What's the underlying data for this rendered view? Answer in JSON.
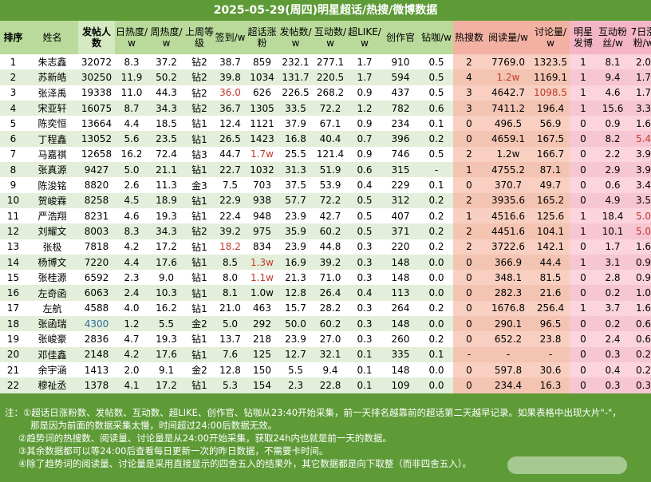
{
  "title": "2025-05-29(周四)明星超话/热搜/微博数据",
  "headers": [
    "排序",
    "姓名",
    "发帖人数",
    "日热度/w",
    "周热度/w",
    "上周等级",
    "签到/w",
    "超话涨粉",
    "发帖数/w",
    "互动数/w",
    "超LIKE/w",
    "创作官",
    "钻咖/w",
    "热搜数",
    "阅读量/w",
    "讨论量/w",
    "明星发博",
    "互动粉丝/w",
    "7日涨粉/w"
  ],
  "rows": [
    [
      "1",
      "朱志鑫",
      "32072",
      "8.3",
      "37.2",
      "钻2",
      "38.7",
      "859",
      "232.1",
      "277.1",
      "1.7",
      "910",
      "0.5",
      "2",
      "7769.0",
      "1323.5",
      "1",
      "8.1",
      "2.0"
    ],
    [
      "2",
      "苏新皓",
      "30250",
      "11.9",
      "50.2",
      "钻2",
      "39.8",
      "1034",
      "131.7",
      "220.5",
      "1.7",
      "594",
      "0.5",
      "4",
      "1.2w",
      "1169.1",
      "1",
      "9.4",
      "1.7"
    ],
    [
      "3",
      "张泽禹",
      "19338",
      "11.0",
      "44.3",
      "钻2",
      "36.0",
      "626",
      "226.5",
      "268.2",
      "0.9",
      "437",
      "0.5",
      "3",
      "4642.7",
      "1098.5",
      "1",
      "4.6",
      "1.7"
    ],
    [
      "4",
      "宋亚轩",
      "16075",
      "8.7",
      "34.3",
      "钻2",
      "36.7",
      "1305",
      "33.5",
      "72.2",
      "1.2",
      "782",
      "0.6",
      "3",
      "7411.2",
      "196.4",
      "1",
      "15.6",
      "3.3"
    ],
    [
      "5",
      "陈奕恒",
      "13664",
      "4.4",
      "18.5",
      "钻1",
      "12.4",
      "1121",
      "37.9",
      "67.1",
      "0.9",
      "234",
      "0.1",
      "0",
      "496.5",
      "56.9",
      "0",
      "0.9",
      "1.6"
    ],
    [
      "6",
      "丁程鑫",
      "13052",
      "5.6",
      "23.5",
      "钻1",
      "26.5",
      "1423",
      "16.8",
      "40.4",
      "0.7",
      "396",
      "0.2",
      "0",
      "4659.1",
      "167.5",
      "0",
      "8.2",
      "5.4"
    ],
    [
      "7",
      "马嘉祺",
      "12658",
      "16.2",
      "72.4",
      "钻3",
      "44.7",
      "1.7w",
      "25.5",
      "121.4",
      "0.9",
      "746",
      "0.5",
      "2",
      "1.2w",
      "166.7",
      "0",
      "2.2",
      "3.9"
    ],
    [
      "8",
      "张真源",
      "9427",
      "5.0",
      "21.1",
      "钻1",
      "22.7",
      "1032",
      "31.3",
      "51.9",
      "0.6",
      "315",
      "-",
      "1",
      "4755.2",
      "87.1",
      "0",
      "2.9",
      "3.9"
    ],
    [
      "9",
      "陈浚铭",
      "8820",
      "2.6",
      "11.3",
      "金3",
      "7.5",
      "703",
      "37.5",
      "53.9",
      "0.4",
      "229",
      "0.1",
      "0",
      "370.7",
      "49.7",
      "0",
      "0.6",
      "3.4"
    ],
    [
      "10",
      "贺峻霖",
      "8258",
      "4.5",
      "18.9",
      "钻1",
      "22.9",
      "938",
      "57.7",
      "72.2",
      "0.5",
      "312",
      "0.2",
      "2",
      "3935.6",
      "165.2",
      "0",
      "4.9",
      "3.5"
    ],
    [
      "11",
      "严浩翔",
      "8231",
      "4.6",
      "19.3",
      "钻1",
      "22.4",
      "948",
      "23.9",
      "42.7",
      "0.5",
      "407",
      "0.2",
      "1",
      "4516.6",
      "125.6",
      "1",
      "18.4",
      "5.0"
    ],
    [
      "12",
      "刘耀文",
      "8003",
      "8.3",
      "34.3",
      "钻2",
      "39.2",
      "975",
      "35.9",
      "60.2",
      "0.5",
      "371",
      "0.2",
      "2",
      "4451.6",
      "104.1",
      "1",
      "10.1",
      "5.0"
    ],
    [
      "13",
      "张极",
      "7818",
      "4.2",
      "17.2",
      "钻1",
      "18.2",
      "834",
      "23.9",
      "44.8",
      "0.3",
      "220",
      "0.2",
      "2",
      "3722.6",
      "142.1",
      "0",
      "1.7",
      "1.6"
    ],
    [
      "14",
      "杨博文",
      "7220",
      "4.4",
      "17.6",
      "钻1",
      "8.5",
      "1.3w",
      "16.9",
      "39.2",
      "0.3",
      "148",
      "0.0",
      "0",
      "366.9",
      "44.4",
      "1",
      "3.1",
      "0.9"
    ],
    [
      "15",
      "张桂源",
      "6592",
      "2.3",
      "9.0",
      "钻1",
      "8.0",
      "1.1w",
      "21.3",
      "71.0",
      "0.3",
      "148",
      "0.0",
      "0",
      "348.1",
      "81.5",
      "0",
      "2.8",
      "0.9"
    ],
    [
      "16",
      "左奇函",
      "6063",
      "2.4",
      "10.3",
      "钻1",
      "8.1",
      "1.0w",
      "12.8",
      "26.4",
      "0.4",
      "113",
      "0.0",
      "0",
      "282.3",
      "21.6",
      "0",
      "0.2",
      "1.0"
    ],
    [
      "17",
      "左航",
      "4588",
      "4.0",
      "16.2",
      "钻1",
      "21.0",
      "463",
      "15.7",
      "28.2",
      "0.3",
      "264",
      "0.2",
      "0",
      "1676.8",
      "256.4",
      "1",
      "3.7",
      "1.6"
    ],
    [
      "18",
      "张函瑞",
      "4300",
      "1.2",
      "5.5",
      "金2",
      "5.0",
      "292",
      "50.0",
      "60.2",
      "0.3",
      "148",
      "0.0",
      "0",
      "290.1",
      "96.5",
      "0",
      "0.2",
      "0.6"
    ],
    [
      "19",
      "张峻豪",
      "2836",
      "4.7",
      "19.3",
      "钻1",
      "13.7",
      "218",
      "23.9",
      "27.0",
      "0.3",
      "260",
      "0.2",
      "0",
      "652.2",
      "23.8",
      "0",
      "2.4",
      "0.6"
    ],
    [
      "20",
      "邓佳鑫",
      "2148",
      "4.2",
      "17.6",
      "钻1",
      "7.6",
      "125",
      "12.7",
      "32.1",
      "0.1",
      "335",
      "0.1",
      "-",
      "-",
      "-",
      "0",
      "0.3",
      "0.2"
    ],
    [
      "21",
      "余宇涵",
      "1413",
      "2.0",
      "9.1",
      "金2",
      "12.8",
      "150",
      "5.5",
      "9.4",
      "0.1",
      "148",
      "0.0",
      "0",
      "597.8",
      "30.6",
      "0",
      "0.4",
      "0.2"
    ],
    [
      "22",
      "穆祉丞",
      "1378",
      "4.1",
      "17.2",
      "钻1",
      "5.3",
      "154",
      "2.3",
      "22.8",
      "0.1",
      "109",
      "0.0",
      "0",
      "234.4",
      "16.3",
      "0",
      "0.3",
      "0.3"
    ]
  ],
  "highlights": {
    "cyan": [
      "17-2"
    ],
    "red": [
      "2-6",
      "12-6",
      "6-7",
      "13-7",
      "14-7",
      "1-14",
      "2-15",
      "5-18",
      "10-18",
      "11-18"
    ]
  },
  "notes": [
    "注：①超话日涨粉数、发帖数、互动数、超LIKE、创作官、钻咖从23:40开始采集，前一天排名越靠前的超话第二天越早记录。如果表格中出现大片\"-\"，",
    "那是因为前面的数据采集太慢，时间超过24:00后数据无效。",
    "②趋势词的热搜数、阅读量、讨论量是从24:00开始采集，获取24h内也就是前一天的数据。",
    "③其余数据都可以等24:00后查看每日更新一次的昨日数据，不需要卡时间。",
    "④除了趋势词的阅读量、讨论量是采用直接显示的四舍五入的结果外，其它数据都是向下取整（而非四舍五入）。"
  ]
}
